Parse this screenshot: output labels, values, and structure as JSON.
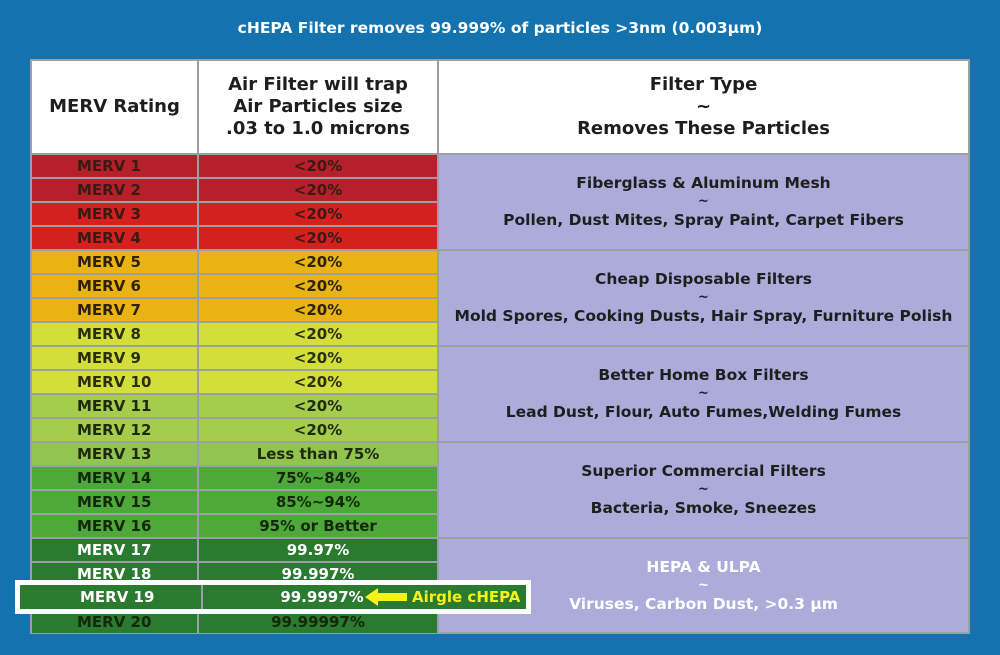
{
  "title": "cHEPA Filter removes 99.999% of particles >3nm (0.003µm)",
  "header": {
    "col1": "MERV Rating",
    "col2_lines": [
      "Air Filter will trap",
      "Air Particles size",
      ".03 to 1.0 microns"
    ],
    "col3_lines": [
      "Filter Type",
      "~",
      "Removes These Particles"
    ]
  },
  "rows": [
    {
      "rating": "MERV 1",
      "efficiency": "<20%",
      "bg": "#b5202a",
      "fg": "#3a1a12"
    },
    {
      "rating": "MERV 2",
      "efficiency": "<20%",
      "bg": "#b5202a",
      "fg": "#3a1a12"
    },
    {
      "rating": "MERV 3",
      "efficiency": "<20%",
      "bg": "#d4201f",
      "fg": "#3a1a12"
    },
    {
      "rating": "MERV 4",
      "efficiency": "<20%",
      "bg": "#d4201f",
      "fg": "#3a1a12"
    },
    {
      "rating": "MERV 5",
      "efficiency": "<20%",
      "bg": "#e9b413",
      "fg": "#2e2206"
    },
    {
      "rating": "MERV 6",
      "efficiency": "<20%",
      "bg": "#e9b413",
      "fg": "#2e2206"
    },
    {
      "rating": "MERV 7",
      "efficiency": "<20%",
      "bg": "#e9b413",
      "fg": "#2e2206"
    },
    {
      "rating": "MERV 8",
      "efficiency": "<20%",
      "bg": "#d3de3a",
      "fg": "#2a2f0c"
    },
    {
      "rating": "MERV 9",
      "efficiency": "<20%",
      "bg": "#d3de3a",
      "fg": "#2a2f0c"
    },
    {
      "rating": "MERV 10",
      "efficiency": "<20%",
      "bg": "#d3de3a",
      "fg": "#2a2f0c"
    },
    {
      "rating": "MERV 11",
      "efficiency": "<20%",
      "bg": "#a5cc4d",
      "fg": "#1e2a0c"
    },
    {
      "rating": "MERV 12",
      "efficiency": "<20%",
      "bg": "#a5cc4d",
      "fg": "#1e2a0c"
    },
    {
      "rating": "MERV 13",
      "efficiency": "Less than 75%",
      "bg": "#92c451",
      "fg": "#1e2a0c"
    },
    {
      "rating": "MERV 14",
      "efficiency": "75%~84%",
      "bg": "#4ea83a",
      "fg": "#14280a"
    },
    {
      "rating": "MERV 15",
      "efficiency": "85%~94%",
      "bg": "#4ea83a",
      "fg": "#14280a"
    },
    {
      "rating": "MERV 16",
      "efficiency": "95% or Better",
      "bg": "#4ea83a",
      "fg": "#14280a"
    },
    {
      "rating": "MERV 17",
      "efficiency": "99.97%",
      "bg": "#2a7a2f",
      "fg": "#ffffff"
    },
    {
      "rating": "MERV 18",
      "efficiency": "99.997%",
      "bg": "#2a7a2f",
      "fg": "#ffffff"
    },
    {
      "rating": "MERV 19",
      "efficiency": "99.9997%",
      "bg": "#2a7a2f",
      "fg": "#ffffff"
    },
    {
      "rating": "MERV 20",
      "efficiency": "99.99997%",
      "bg": "#2a7a2f",
      "fg": "#14280a"
    }
  ],
  "groups": [
    {
      "name": "Fiberglass & Aluminum Mesh",
      "sep": "~",
      "particles": "Pollen, Dust Mites, Spray Paint, Carpet Fibers"
    },
    {
      "name": "Cheap Disposable Filters",
      "sep": "~",
      "particles": "Mold Spores, Cooking Dusts, Hair Spray, Furniture Polish"
    },
    {
      "name": "Better Home Box Filters",
      "sep": "~",
      "particles": "Lead Dust, Flour, Auto Fumes,Welding Fumes"
    },
    {
      "name": "Superior Commercial Filters",
      "sep": "~",
      "particles": "Bacteria, Smoke, Sneezes"
    },
    {
      "name": "HEPA & ULPA",
      "sep": "~",
      "particles": "Viruses, Carbon Dust, >0.3 µm"
    }
  ],
  "highlight": {
    "rating": "MERV 19",
    "efficiency": "99.9997%",
    "label": "Airgle cHEPA",
    "arrow_color": "#f7f11a"
  }
}
